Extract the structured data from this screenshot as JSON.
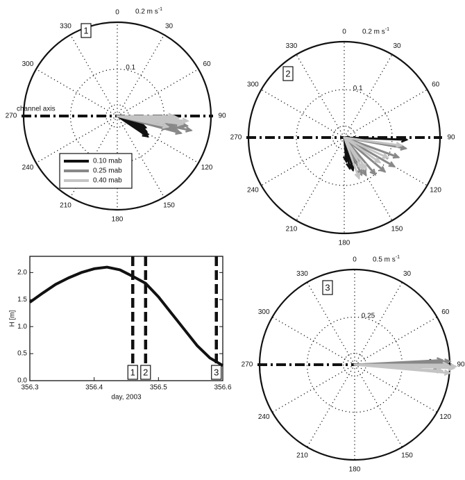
{
  "chart_data": [
    {
      "panel": "1",
      "type": "polar-vector",
      "max_speed": 0.2,
      "unit": "m s",
      "unit_exp": "-1",
      "ring_labels": [
        "0.1",
        "0.2"
      ],
      "angle_labels": [
        "0",
        "30",
        "60",
        "90",
        "120",
        "150",
        "180",
        "210",
        "240",
        "270",
        "300",
        "330"
      ],
      "axis_note": "channel axis",
      "legend": [
        {
          "name": "0.10 mab",
          "color": "#111111"
        },
        {
          "name": "0.25 mab",
          "color": "#888888"
        },
        {
          "name": "0.40 mab",
          "color": "#c4c4c4"
        }
      ],
      "series": [
        {
          "name": "0.10 mab",
          "vectors": [
            [
              110,
              0.06
            ],
            [
              115,
              0.06
            ],
            [
              118,
              0.07
            ],
            [
              121,
              0.075
            ],
            [
              124,
              0.078
            ],
            [
              120,
              0.07
            ],
            [
              112,
              0.065
            ],
            [
              108,
              0.05
            ]
          ]
        },
        {
          "name": "0.25 mab",
          "vectors": [
            [
              100,
              0.12
            ],
            [
              103,
              0.13
            ],
            [
              105,
              0.14
            ],
            [
              98,
              0.15
            ],
            [
              101,
              0.16
            ],
            [
              96,
              0.135
            ],
            [
              104,
              0.11
            ],
            [
              99,
              0.14
            ]
          ]
        },
        {
          "name": "0.40 mab",
          "vectors": [
            [
              95,
              0.12
            ],
            [
              97,
              0.14
            ],
            [
              92,
              0.13
            ],
            [
              99,
              0.1
            ],
            [
              94,
              0.15
            ],
            [
              102,
              0.11
            ],
            [
              90,
              0.12
            ],
            [
              96,
              0.14
            ]
          ]
        }
      ]
    },
    {
      "panel": "2",
      "type": "polar-vector",
      "max_speed": 0.2,
      "unit": "m s",
      "unit_exp": "-1",
      "ring_labels": [
        "0.1",
        "0.2"
      ],
      "angle_labels": [
        "0",
        "30",
        "60",
        "90",
        "120",
        "150",
        "180",
        "210",
        "240",
        "270",
        "300",
        "330"
      ],
      "series": [
        {
          "name": "0.10 mab",
          "vectors": [
            [
              92,
              0.13
            ],
            [
              160,
              0.06
            ],
            [
              165,
              0.07
            ],
            [
              170,
              0.065
            ],
            [
              158,
              0.055
            ],
            [
              150,
              0.06
            ],
            [
              175,
              0.05
            ]
          ]
        },
        {
          "name": "0.25 mab",
          "vectors": [
            [
              100,
              0.13
            ],
            [
              120,
              0.12
            ],
            [
              140,
              0.1
            ],
            [
              150,
              0.09
            ],
            [
              130,
              0.11
            ],
            [
              155,
              0.085
            ],
            [
              110,
              0.12
            ]
          ]
        },
        {
          "name": "0.40 mab",
          "vectors": [
            [
              98,
              0.12
            ],
            [
              115,
              0.1
            ],
            [
              145,
              0.08
            ],
            [
              160,
              0.09
            ],
            [
              125,
              0.09
            ],
            [
              150,
              0.075
            ]
          ]
        }
      ]
    },
    {
      "panel": "3",
      "type": "polar-vector",
      "max_speed": 0.5,
      "unit": "m s",
      "unit_exp": "-1",
      "ring_labels": [
        "0.25",
        "0.5"
      ],
      "angle_labels": [
        "0",
        "30",
        "60",
        "90",
        "120",
        "150",
        "180",
        "210",
        "240",
        "270",
        "300",
        "330"
      ],
      "series": [
        {
          "name": "0.10 mab",
          "vectors": [
            [
              88,
              0.42
            ],
            [
              89,
              0.45
            ],
            [
              90,
              0.4
            ],
            [
              89,
              0.47
            ]
          ]
        },
        {
          "name": "0.25 mab",
          "vectors": [
            [
              87,
              0.46
            ],
            [
              89,
              0.48
            ],
            [
              91,
              0.47
            ],
            [
              88,
              0.5
            ],
            [
              92,
              0.44
            ]
          ]
        },
        {
          "name": "0.40 mab",
          "vectors": [
            [
              90,
              0.49
            ],
            [
              92,
              0.52
            ],
            [
              94,
              0.46
            ],
            [
              91,
              0.53
            ],
            [
              95,
              0.5
            ]
          ]
        }
      ]
    },
    {
      "panel": "H",
      "type": "line",
      "xlabel": "day, 2003",
      "ylabel": "H [m]",
      "xlim": [
        356.3,
        356.6
      ],
      "ylim": [
        0.0,
        2.3
      ],
      "xticks": [
        "356.3",
        "356.4",
        "356.5",
        "356.6"
      ],
      "yticks": [
        "0.0",
        "0.5",
        "1.0",
        "1.5",
        "2.0"
      ],
      "x": [
        356.3,
        356.32,
        356.34,
        356.36,
        356.38,
        356.4,
        356.42,
        356.44,
        356.46,
        356.48,
        356.5,
        356.52,
        356.54,
        356.56,
        356.58,
        356.6
      ],
      "y": [
        1.45,
        1.62,
        1.78,
        1.9,
        2.0,
        2.07,
        2.1,
        2.05,
        1.93,
        1.8,
        1.55,
        1.25,
        0.95,
        0.65,
        0.42,
        0.28
      ],
      "markers": [
        {
          "label": "1",
          "x": 356.46
        },
        {
          "label": "2",
          "x": 356.48
        },
        {
          "label": "3",
          "x": 356.59
        }
      ]
    }
  ]
}
